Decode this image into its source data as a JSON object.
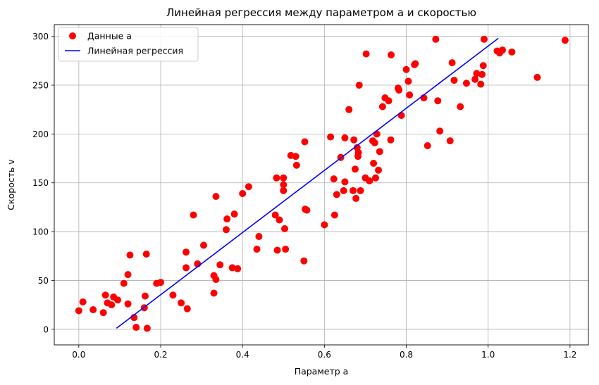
{
  "chart_data": {
    "type": "scatter",
    "title": "Линейная регрессия между параметром a и скоростью",
    "xlabel": "Параметр a",
    "ylabel": "Скорость v",
    "xlim": [
      -0.06,
      1.245
    ],
    "ylim": [
      -16,
      312
    ],
    "xticks": [
      0.0,
      0.2,
      0.4,
      0.6,
      0.8,
      1.0,
      1.2
    ],
    "xtick_labels": [
      "0.0",
      "0.2",
      "0.4",
      "0.6",
      "0.8",
      "1.0",
      "1.2"
    ],
    "yticks": [
      0,
      50,
      100,
      150,
      200,
      250,
      300
    ],
    "ytick_labels": [
      "0",
      "50",
      "100",
      "150",
      "200",
      "250",
      "300"
    ],
    "grid": true,
    "legend_position": "top-left",
    "series": [
      {
        "name": "Данные a",
        "kind": "scatter",
        "color": "#ff0000",
        "points": [
          [
            0.0,
            19
          ],
          [
            0.01,
            28
          ],
          [
            0.035,
            20
          ],
          [
            0.06,
            17
          ],
          [
            0.065,
            35
          ],
          [
            0.07,
            27
          ],
          [
            0.08,
            25
          ],
          [
            0.085,
            33
          ],
          [
            0.095,
            30
          ],
          [
            0.11,
            47
          ],
          [
            0.12,
            26
          ],
          [
            0.12,
            56
          ],
          [
            0.125,
            76
          ],
          [
            0.135,
            12
          ],
          [
            0.14,
            2
          ],
          [
            0.16,
            22
          ],
          [
            0.162,
            34
          ],
          [
            0.165,
            77
          ],
          [
            0.167,
            1
          ],
          [
            0.19,
            47
          ],
          [
            0.2,
            48
          ],
          [
            0.23,
            35
          ],
          [
            0.25,
            27
          ],
          [
            0.262,
            79
          ],
          [
            0.262,
            63
          ],
          [
            0.265,
            21
          ],
          [
            0.28,
            117
          ],
          [
            0.29,
            67
          ],
          [
            0.305,
            86
          ],
          [
            0.33,
            55
          ],
          [
            0.33,
            37
          ],
          [
            0.335,
            136
          ],
          [
            0.335,
            51
          ],
          [
            0.345,
            66
          ],
          [
            0.36,
            102
          ],
          [
            0.362,
            113
          ],
          [
            0.375,
            63
          ],
          [
            0.38,
            118
          ],
          [
            0.388,
            62
          ],
          [
            0.4,
            139
          ],
          [
            0.415,
            146
          ],
          [
            0.435,
            82
          ],
          [
            0.44,
            95
          ],
          [
            0.48,
            117
          ],
          [
            0.483,
            155
          ],
          [
            0.485,
            81
          ],
          [
            0.49,
            112
          ],
          [
            0.5,
            155
          ],
          [
            0.5,
            148
          ],
          [
            0.5,
            142
          ],
          [
            0.503,
            103
          ],
          [
            0.505,
            82
          ],
          [
            0.518,
            178
          ],
          [
            0.53,
            177
          ],
          [
            0.532,
            168
          ],
          [
            0.55,
            70
          ],
          [
            0.552,
            192
          ],
          [
            0.553,
            123
          ],
          [
            0.557,
            122
          ],
          [
            0.6,
            107
          ],
          [
            0.615,
            197
          ],
          [
            0.623,
            154
          ],
          [
            0.625,
            117
          ],
          [
            0.63,
            138
          ],
          [
            0.64,
            176
          ],
          [
            0.647,
            142
          ],
          [
            0.65,
            196
          ],
          [
            0.65,
            151
          ],
          [
            0.66,
            225
          ],
          [
            0.67,
            142
          ],
          [
            0.672,
            194
          ],
          [
            0.675,
            164
          ],
          [
            0.677,
            134
          ],
          [
            0.68,
            186
          ],
          [
            0.682,
            177
          ],
          [
            0.683,
            181
          ],
          [
            0.685,
            250
          ],
          [
            0.688,
            142
          ],
          [
            0.7,
            155
          ],
          [
            0.702,
            282
          ],
          [
            0.71,
            152
          ],
          [
            0.718,
            193
          ],
          [
            0.72,
            170
          ],
          [
            0.723,
            191
          ],
          [
            0.725,
            155
          ],
          [
            0.728,
            200
          ],
          [
            0.732,
            163
          ],
          [
            0.735,
            182
          ],
          [
            0.742,
            228
          ],
          [
            0.748,
            237
          ],
          [
            0.757,
            234
          ],
          [
            0.762,
            194
          ],
          [
            0.763,
            281
          ],
          [
            0.78,
            247
          ],
          [
            0.782,
            245
          ],
          [
            0.788,
            219
          ],
          [
            0.8,
            266
          ],
          [
            0.805,
            254
          ],
          [
            0.808,
            240
          ],
          [
            0.82,
            271
          ],
          [
            0.822,
            272
          ],
          [
            0.843,
            237
          ],
          [
            0.852,
            188
          ],
          [
            0.872,
            297
          ],
          [
            0.877,
            234
          ],
          [
            0.882,
            203
          ],
          [
            0.907,
            193
          ],
          [
            0.912,
            273
          ],
          [
            0.917,
            255
          ],
          [
            0.932,
            228
          ],
          [
            0.947,
            252
          ],
          [
            0.968,
            256
          ],
          [
            0.972,
            262
          ],
          [
            0.982,
            251
          ],
          [
            0.985,
            261
          ],
          [
            0.988,
            270
          ],
          [
            0.99,
            297
          ],
          [
            1.022,
            285
          ],
          [
            1.028,
            283
          ],
          [
            1.035,
            286
          ],
          [
            1.058,
            284
          ],
          [
            1.12,
            258
          ],
          [
            1.188,
            296
          ]
        ]
      },
      {
        "name": "Линейная регрессия",
        "kind": "line",
        "color": "#0000ff",
        "points": [
          [
            0.092,
            1
          ],
          [
            1.025,
            298
          ]
        ]
      }
    ]
  }
}
